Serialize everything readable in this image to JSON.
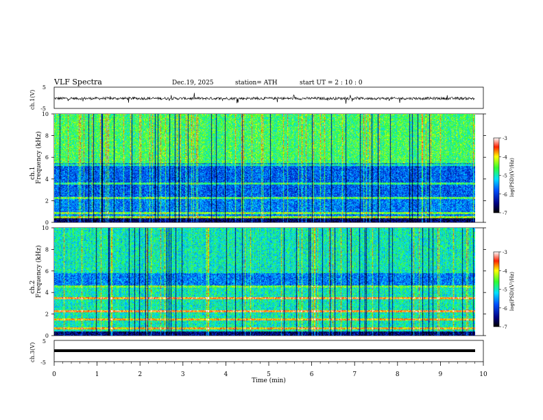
{
  "header": {
    "title": "VLF  Spectra",
    "date": "Dec.19, 2025",
    "station": "station= ATH",
    "start": "start  UT  =   2  : 10 : 0"
  },
  "colorbar": {
    "label": "log(PSD)(V²/Hz)",
    "ticks": [
      "-3",
      "-4",
      "-5",
      "-6",
      "-7"
    ]
  },
  "chart_data": [
    {
      "type": "line",
      "name": "ch1-waveform",
      "ylabel": "ch.1(V)",
      "ylim": [
        -5,
        5
      ],
      "yticks": [
        "5",
        "-5"
      ],
      "xlim": [
        0,
        10
      ],
      "description_of_signal": "noisy waveform fluctuating around -0.3 V with spikes to about ±2 V"
    },
    {
      "type": "heatmap",
      "name": "ch1-spectrogram",
      "ylabel": "ch.1\nFrequency (kHz)",
      "ylim": [
        0,
        10
      ],
      "yticks": [
        "10",
        "8",
        "6",
        "4",
        "2",
        "0"
      ],
      "xlim": [
        0,
        10
      ],
      "zlim": [
        -7,
        -3
      ]
    },
    {
      "type": "heatmap",
      "name": "ch2-spectrogram",
      "ylabel": "ch.2\nFrequency (kHz)",
      "ylim": [
        0,
        10
      ],
      "yticks": [
        "10",
        "8",
        "6",
        "4",
        "2",
        "0"
      ],
      "xlim": [
        0,
        10
      ],
      "zlim": [
        -7,
        -3
      ]
    },
    {
      "type": "line",
      "name": "ch3-waveform",
      "ylabel": "ch.3(V)",
      "ylim": [
        -5,
        5
      ],
      "yticks": [
        "5",
        "-5"
      ],
      "xlim": [
        0,
        10
      ],
      "constant_value": 0
    }
  ],
  "xaxis": {
    "label": "Time  (min)",
    "ticks": [
      "0",
      "1",
      "2",
      "3",
      "4",
      "5",
      "6",
      "7",
      "8",
      "9",
      "10"
    ],
    "data_end": 9.8
  }
}
